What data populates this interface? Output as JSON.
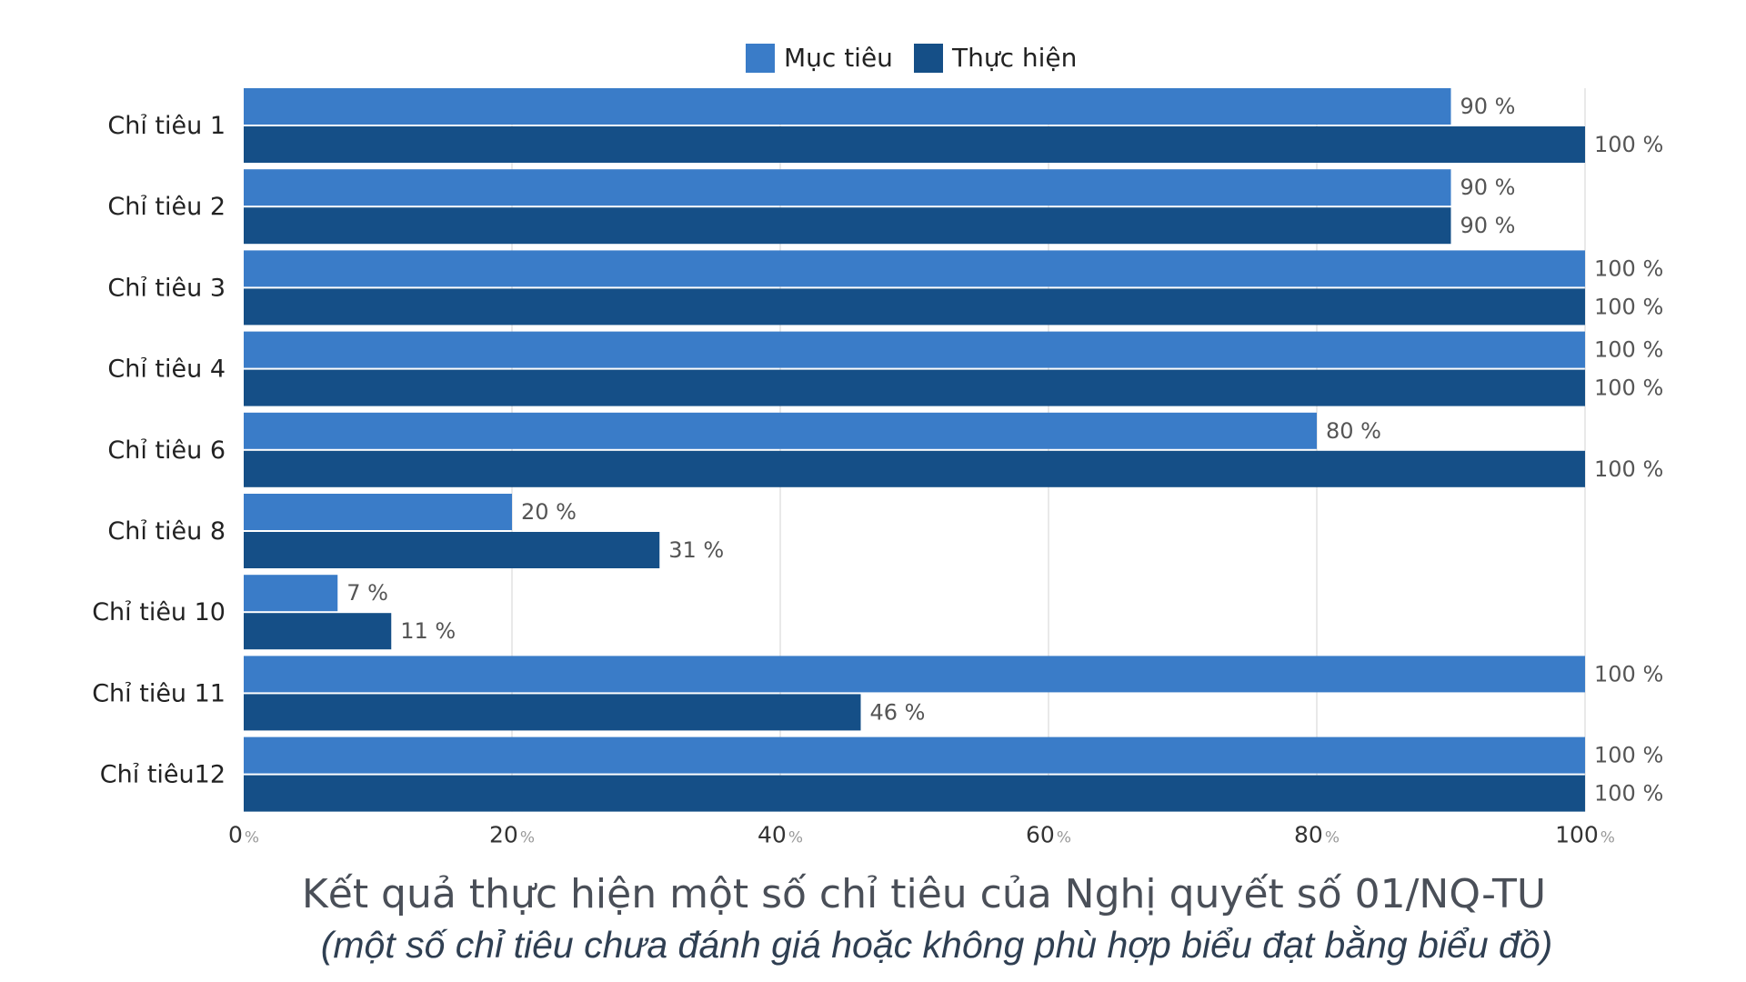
{
  "chart_data": {
    "type": "bar",
    "orientation": "horizontal",
    "title": "Kết quả thực hiện một số chỉ tiêu của Nghị quyết số 01/NQ-TU",
    "subtitle": "(một số chỉ tiêu chưa đánh giá hoặc không phù hợp biểu đạt bằng biểu đồ)",
    "categories": [
      "Chỉ tiêu 1",
      "Chỉ tiêu 2",
      "Chỉ tiêu 3",
      "Chỉ tiêu 4",
      "Chỉ tiêu 6",
      "Chỉ tiêu 8",
      "Chỉ tiêu 10",
      "Chỉ tiêu 11",
      "Chỉ tiêu12"
    ],
    "series": [
      {
        "name": "Mục tiêu",
        "color": "#3a7cc8",
        "values": [
          90,
          90,
          100,
          100,
          80,
          20,
          7,
          100,
          100
        ]
      },
      {
        "name": "Thực hiện",
        "color": "#154f87",
        "values": [
          100,
          90,
          100,
          100,
          100,
          31,
          11,
          46,
          100
        ]
      }
    ],
    "value_suffix": " %",
    "xlim": [
      0,
      100
    ],
    "xticks": [
      0,
      20,
      40,
      60,
      80,
      100
    ],
    "xtick_suffix": "%",
    "grid": true,
    "legend_position": "top-center"
  }
}
